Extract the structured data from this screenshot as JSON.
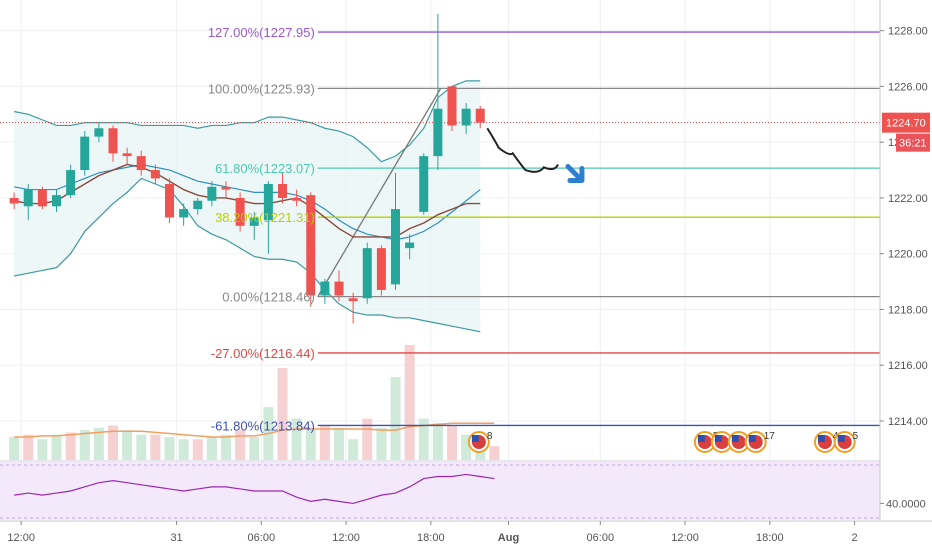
{
  "chart_data": {
    "type": "candlestick",
    "price_axis": {
      "ylim": [
        1212.6,
        1229.1
      ],
      "ticks": [
        "1228.00",
        "1226.00",
        "1224.00",
        "1222.00",
        "1220.00",
        "1218.00",
        "1216.00",
        "1214.00"
      ],
      "tick_values": [
        1228,
        1226,
        1224,
        1222,
        1220,
        1218,
        1216,
        1214
      ],
      "current_price": "1224.70",
      "current_price_value": 1224.7,
      "countdown": "36:21",
      "current_color": "#ef5350"
    },
    "time_axis": {
      "labels": [
        "12:00",
        "31",
        "06:00",
        "12:00",
        "18:00",
        "Aug",
        "06:00",
        "12:00",
        "18:00",
        "2"
      ],
      "bold": [
        false,
        false,
        false,
        false,
        false,
        true,
        false,
        false,
        false,
        false
      ],
      "label_index": [
        -7,
        4,
        10,
        16,
        22,
        27.5,
        34,
        40,
        46,
        52
      ],
      "xlim": [
        -8.5,
        53.8
      ]
    },
    "candles": [
      {
        "o": 1222.0,
        "h": 1222.2,
        "l": 1221.6,
        "c": 1221.8
      },
      {
        "o": 1221.7,
        "h": 1222.5,
        "l": 1221.2,
        "c": 1222.3
      },
      {
        "o": 1222.3,
        "h": 1222.4,
        "l": 1221.6,
        "c": 1221.7
      },
      {
        "o": 1221.7,
        "h": 1222.3,
        "l": 1221.5,
        "c": 1222.1
      },
      {
        "o": 1222.1,
        "h": 1223.2,
        "l": 1222.0,
        "c": 1223.0
      },
      {
        "o": 1223.0,
        "h": 1224.4,
        "l": 1222.8,
        "c": 1224.2
      },
      {
        "o": 1224.2,
        "h": 1224.7,
        "l": 1224.0,
        "c": 1224.5
      },
      {
        "o": 1224.5,
        "h": 1224.6,
        "l": 1223.3,
        "c": 1223.6
      },
      {
        "o": 1223.6,
        "h": 1223.8,
        "l": 1223.2,
        "c": 1223.5
      },
      {
        "o": 1223.5,
        "h": 1223.7,
        "l": 1222.8,
        "c": 1223.0
      },
      {
        "o": 1223.0,
        "h": 1223.2,
        "l": 1222.5,
        "c": 1222.7
      },
      {
        "o": 1222.5,
        "h": 1222.7,
        "l": 1221.1,
        "c": 1221.3
      },
      {
        "o": 1221.3,
        "h": 1221.8,
        "l": 1221.0,
        "c": 1221.6
      },
      {
        "o": 1221.6,
        "h": 1222.0,
        "l": 1221.4,
        "c": 1221.9
      },
      {
        "o": 1221.9,
        "h": 1222.6,
        "l": 1221.7,
        "c": 1222.4
      },
      {
        "o": 1222.4,
        "h": 1222.6,
        "l": 1222.0,
        "c": 1222.3
      },
      {
        "o": 1222.0,
        "h": 1222.2,
        "l": 1220.8,
        "c": 1221.0
      },
      {
        "o": 1221.0,
        "h": 1221.5,
        "l": 1220.5,
        "c": 1221.3
      },
      {
        "o": 1221.2,
        "h": 1222.6,
        "l": 1220.0,
        "c": 1222.5
      },
      {
        "o": 1222.5,
        "h": 1222.9,
        "l": 1221.8,
        "c": 1222.0
      },
      {
        "o": 1222.0,
        "h": 1222.3,
        "l": 1221.7,
        "c": 1221.9
      },
      {
        "o": 1222.1,
        "h": 1222.2,
        "l": 1218.1,
        "c": 1218.5
      },
      {
        "o": 1218.5,
        "h": 1219.1,
        "l": 1218.2,
        "c": 1219.0
      },
      {
        "o": 1219.0,
        "h": 1219.4,
        "l": 1218.3,
        "c": 1218.5
      },
      {
        "o": 1218.4,
        "h": 1218.6,
        "l": 1217.5,
        "c": 1218.3
      },
      {
        "o": 1218.4,
        "h": 1220.4,
        "l": 1218.2,
        "c": 1220.2
      },
      {
        "o": 1220.2,
        "h": 1220.3,
        "l": 1218.5,
        "c": 1218.7
      },
      {
        "o": 1218.9,
        "h": 1222.9,
        "l": 1218.7,
        "c": 1221.6
      },
      {
        "o": 1220.2,
        "h": 1220.7,
        "l": 1219.8,
        "c": 1220.4
      },
      {
        "o": 1221.5,
        "h": 1223.6,
        "l": 1221.4,
        "c": 1223.5
      },
      {
        "o": 1223.5,
        "h": 1228.6,
        "l": 1223.0,
        "c": 1225.2
      },
      {
        "o": 1226.0,
        "h": 1226.0,
        "l": 1224.4,
        "c": 1224.6
      },
      {
        "o": 1224.6,
        "h": 1225.4,
        "l": 1224.3,
        "c": 1225.2
      },
      {
        "o": 1225.2,
        "h": 1225.3,
        "l": 1224.5,
        "c": 1224.7
      }
    ],
    "colors": {
      "up": "#26a69a",
      "down": "#ef5350",
      "bb": "#3d9b9e",
      "ma": "#8b4a3c"
    },
    "bollinger": {
      "upper": [
        1225.1,
        1225.0,
        1224.8,
        1224.6,
        1224.6,
        1224.7,
        1224.7,
        1224.7,
        1224.7,
        1224.6,
        1224.6,
        1224.6,
        1224.6,
        1224.5,
        1224.6,
        1224.6,
        1224.7,
        1224.7,
        1224.9,
        1224.9,
        1224.8,
        1224.7,
        1224.5,
        1224.4,
        1224.2,
        1223.8,
        1223.3,
        1223.5,
        1223.9,
        1224.5,
        1225.6,
        1226.0,
        1226.2,
        1226.2
      ],
      "middle": [
        1222.4,
        1222.3,
        1222.3,
        1222.3,
        1222.5,
        1222.7,
        1222.9,
        1223.0,
        1223.1,
        1223.2,
        1223.1,
        1223.0,
        1222.8,
        1222.6,
        1222.5,
        1222.4,
        1222.3,
        1222.2,
        1222.2,
        1222.2,
        1222.1,
        1221.9,
        1221.6,
        1221.2,
        1220.9,
        1220.7,
        1220.6,
        1220.5,
        1220.6,
        1220.8,
        1221.1,
        1221.5,
        1221.9,
        1222.3
      ],
      "lower": [
        1219.2,
        1219.3,
        1219.4,
        1219.5,
        1220.0,
        1220.8,
        1221.3,
        1221.8,
        1222.2,
        1222.7,
        1222.5,
        1222.3,
        1221.7,
        1221.0,
        1220.7,
        1220.5,
        1220.2,
        1219.9,
        1219.8,
        1219.8,
        1219.7,
        1219.3,
        1218.7,
        1218.2,
        1217.9,
        1217.8,
        1217.8,
        1217.7,
        1217.7,
        1217.6,
        1217.5,
        1217.4,
        1217.3,
        1217.2
      ]
    },
    "ma": [
      1221.9,
      1221.8,
      1221.8,
      1221.9,
      1222.2,
      1222.5,
      1222.8,
      1223.0,
      1223.2,
      1223.1,
      1222.9,
      1222.6,
      1222.3,
      1222.1,
      1222.0,
      1222.0,
      1221.9,
      1221.8,
      1221.8,
      1221.9,
      1222.0,
      1221.7,
      1221.3,
      1220.9,
      1220.6,
      1220.6,
      1220.6,
      1220.6,
      1220.9,
      1221.1,
      1221.4,
      1221.6,
      1221.8,
      1221.8
    ],
    "fibonacci": {
      "from_index": 21.5,
      "to_index": 30.2,
      "levels": [
        {
          "label": "127.00%(1227.95)",
          "value": 1227.95,
          "color": "#9b59d0"
        },
        {
          "label": "100.00%(1225.93)",
          "value": 1225.93,
          "color": "#888888"
        },
        {
          "label": "61.80%(1223.07)",
          "value": 1223.07,
          "color": "#4ec9b0"
        },
        {
          "label": "38.20%(1221.31)",
          "value": 1221.31,
          "color": "#b8d000"
        },
        {
          "label": "0.00%(1218.46)",
          "value": 1218.46,
          "color": "#888888"
        },
        {
          "label": "-27.00%(1216.44)",
          "value": 1216.44,
          "color": "#e04848"
        },
        {
          "label": "-61.80%(1213.84)",
          "value": 1213.84,
          "color": "#3f51b5"
        }
      ],
      "hline_value": 1224.7,
      "hline_color": "#d04040"
    },
    "forecast_path": [
      {
        "i": 33.5,
        "v": 1224.5
      },
      {
        "i": 34.3,
        "v": 1223.8
      },
      {
        "i": 35.3,
        "v": 1223.6
      },
      {
        "i": 36.2,
        "v": 1223.0
      },
      {
        "i": 37.5,
        "v": 1223.1
      },
      {
        "i": 38.5,
        "v": 1223.2
      }
    ],
    "volume": {
      "values": [
        20,
        22,
        18,
        22,
        24,
        26,
        28,
        30,
        26,
        22,
        22,
        20,
        18,
        18,
        20,
        22,
        26,
        20,
        46,
        80,
        36,
        28,
        30,
        28,
        18,
        36,
        28,
        72,
        100,
        36,
        32,
        30,
        22,
        20,
        12
      ],
      "start_index": -8,
      "ma_values": [
        20,
        20,
        21,
        21,
        22,
        23,
        24,
        25,
        25,
        25,
        24,
        23,
        22,
        21,
        20,
        20,
        21,
        21,
        23,
        26,
        27,
        27,
        27,
        27,
        27,
        27,
        26,
        26,
        29,
        30,
        31,
        32,
        32,
        32,
        32
      ]
    },
    "events": [
      {
        "index": 32.9,
        "count": "8"
      },
      {
        "index": 48.9,
        "count": "5"
      },
      {
        "index": 50.1,
        "count": ""
      },
      {
        "index": 51.3,
        "count": ""
      },
      {
        "index": 52.5,
        "count": "17"
      },
      {
        "index": 57.4,
        "count": "4"
      },
      {
        "index": 58.8,
        "count": "5"
      }
    ],
    "oscillator": {
      "tick": "40.0000",
      "tick_value": 40,
      "ylim": [
        32,
        60
      ],
      "values": [
        44,
        45,
        44,
        45,
        46,
        48,
        50,
        51,
        50,
        49,
        48,
        47,
        46,
        47,
        48,
        48,
        47,
        46,
        46,
        46,
        43,
        41,
        42,
        41,
        40,
        42,
        44,
        45,
        48,
        52,
        53,
        53,
        54,
        53,
        52
      ]
    }
  }
}
